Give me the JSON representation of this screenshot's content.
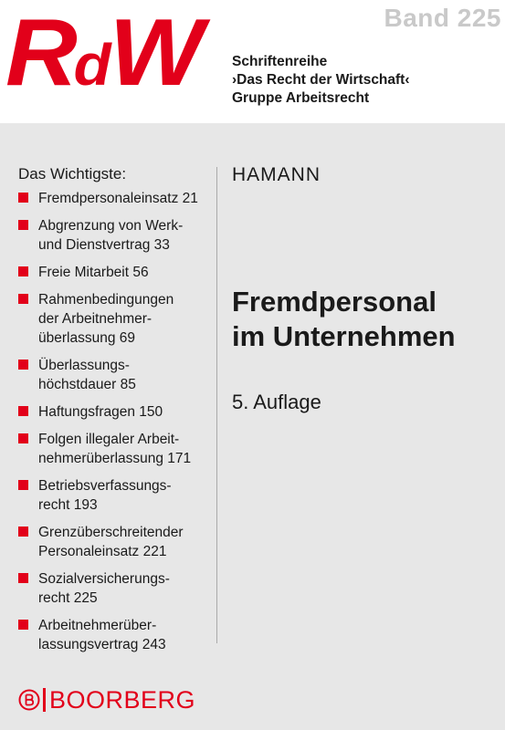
{
  "header": {
    "logo_main": "RdW",
    "logo_parts": [
      "R",
      "d",
      "W"
    ],
    "band": "Band 225",
    "series_lines": [
      "Schriftenreihe",
      "›Das Recht der Wirtschaft‹",
      "Gruppe Arbeitsrecht"
    ]
  },
  "toc": {
    "heading": "Das Wichtigste:",
    "items": [
      {
        "lines": [
          "Fremdpersonaleinsatz  21"
        ]
      },
      {
        "lines": [
          "Abgrenzung von Werk-",
          "und Dienstvertrag  33"
        ]
      },
      {
        "lines": [
          "Freie Mitarbeit  56"
        ]
      },
      {
        "lines": [
          "Rahmenbedingungen",
          "der Arbeitnehmer-",
          "überlassung  69"
        ]
      },
      {
        "lines": [
          "Überlassungs-",
          "höchstdauer  85"
        ]
      },
      {
        "lines": [
          "Haftungsfragen  150"
        ]
      },
      {
        "lines": [
          "Folgen illegaler Arbeit-",
          "nehmerüberlassung  171"
        ]
      },
      {
        "lines": [
          "Betriebsverfassungs-",
          "recht  193"
        ]
      },
      {
        "lines": [
          "Grenzüberschreitender",
          "Personaleinsatz  221"
        ]
      },
      {
        "lines": [
          "Sozialversicherungs-",
          "recht  225"
        ]
      },
      {
        "lines": [
          "Arbeitnehmerüber-",
          "lassungsvertrag  243"
        ]
      }
    ]
  },
  "book": {
    "author": "HAMANN",
    "title_lines": [
      "Fremdpersonal",
      "im Unternehmen"
    ],
    "edition": "5. Auflage"
  },
  "publisher": {
    "name": "BOORBERG",
    "emblem_icon": "boorberg-emblem-icon"
  },
  "colors": {
    "brand_red": "#e2001a",
    "panel_gray": "#e7e7e7",
    "band_gray": "#c9c9c9"
  }
}
